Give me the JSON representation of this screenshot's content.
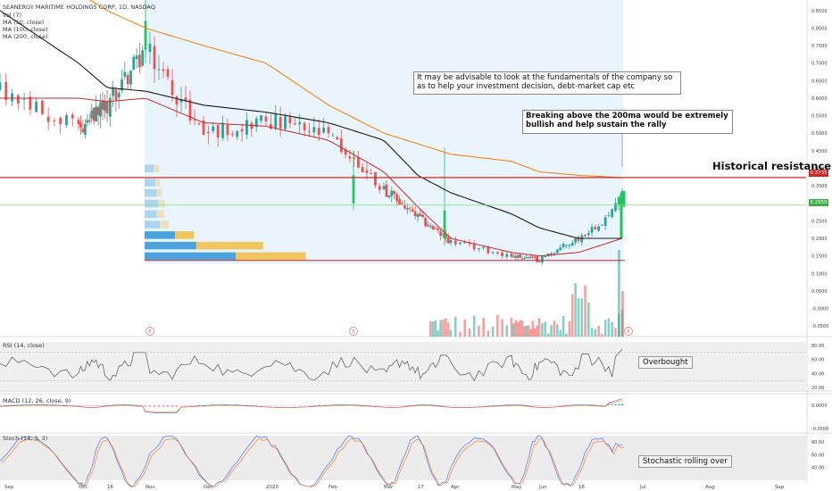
{
  "colors": {
    "up": "#26a69a",
    "down": "#ef5350",
    "up_bright": "#22c55e",
    "ma50": "#c62828",
    "ma100": "#1a1a1a",
    "ma200": "#f57c00",
    "resistance": "#c62828",
    "green_level": "#7be07b",
    "shade": "#eaf4fc",
    "vp_blue": "#3a9ad9",
    "vp_yellow": "#f2c14e"
  },
  "header": {
    "title": "SEANERGY MARITIME HOLDINGS CORP, 1D, NASDAQ",
    "indicators": [
      "Vol (7)",
      "MA (50, close)",
      "MA (100, close)",
      "MA (200, close)"
    ]
  },
  "annotations": {
    "fundamentals": "It may be advisable to look at the fundamentals  of the company so as to help your investment decision, debt-market cap etc",
    "breakout": "Breaking above the 200ma would be extremely bullish and help sustain the rally",
    "historical_resistance": "Historical resistance"
  },
  "panes": {
    "rsi": {
      "label": "RSI (14, close)",
      "note": "Overbought",
      "ticks": [
        "80.00",
        "60.00",
        "40.00",
        "20.00"
      ]
    },
    "macd": {
      "label": "MACD (12, 26, close, 9)",
      "ticks": [
        "0.0000",
        "-0.0500"
      ]
    },
    "stoch": {
      "label": "Stoch (14, 3, 3)",
      "note": "Stochastic rolling over",
      "ticks": [
        "80.00",
        "60.00",
        "40.00"
      ]
    }
  },
  "price_tags": {
    "resistance": "0.3735",
    "last": "0.2950"
  },
  "event_marker": "E",
  "chart_data": {
    "type": "candlestick",
    "ylim": [
      -0.08,
      0.88
    ],
    "yticks": [
      "0.8500",
      "0.8000",
      "0.7500",
      "0.7000",
      "0.6500",
      "0.6000",
      "0.5500",
      "0.5000",
      "0.4500",
      "0.4000",
      "0.3500",
      "0.3000",
      "0.2500",
      "0.2000",
      "0.1500",
      "0.1000",
      "0.0500",
      "-0.0000",
      "-0.0500"
    ],
    "yticks_values": [
      0.85,
      0.8,
      0.75,
      0.7,
      0.65,
      0.6,
      0.55,
      0.5,
      0.45,
      0.4,
      0.35,
      0.3,
      0.25,
      0.2,
      0.15,
      0.1,
      0.05,
      0,
      -0.05
    ],
    "x_labels": [
      "Sep",
      "Oct",
      "16",
      "Nov",
      "Dec",
      "2020",
      "Feb",
      "Mar",
      "17",
      "Apr",
      "May",
      "Jun",
      "16",
      "Jul",
      "Aug",
      "Sep"
    ],
    "levels": {
      "historical_resistance": 0.3735,
      "support": 0.137,
      "last_price": 0.295
    },
    "price_path": {
      "months": [
        "Sep",
        "Oct",
        "16",
        "Nov",
        "Dec",
        "2020",
        "Feb",
        "Mar",
        "17",
        "Apr",
        "May",
        "Jun",
        "16",
        "Jul"
      ],
      "approx_close": [
        0.62,
        0.51,
        0.58,
        0.74,
        0.5,
        0.54,
        0.49,
        0.34,
        0.26,
        0.19,
        0.15,
        0.14,
        0.2,
        0.295
      ]
    },
    "moving_averages": {
      "ma50": [
        0.6,
        0.6,
        0.59,
        0.6,
        0.53,
        0.52,
        0.48,
        0.39,
        0.29,
        0.2,
        0.16,
        0.15,
        0.16,
        0.2
      ],
      "ma100": [
        0.85,
        0.7,
        0.63,
        0.62,
        0.58,
        0.56,
        0.53,
        0.48,
        0.38,
        0.33,
        0.27,
        0.23,
        0.2,
        0.2
      ],
      "ma200": [
        0.95,
        0.9,
        0.85,
        0.8,
        0.75,
        0.7,
        0.58,
        0.5,
        0.47,
        0.44,
        0.42,
        0.39,
        0.38,
        0.3735
      ]
    },
    "volume_profile": {
      "price_bins": [
        0.4,
        0.36,
        0.33,
        0.3,
        0.27,
        0.24,
        0.21,
        0.18,
        0.15
      ],
      "up_share": [
        0.06,
        0.07,
        0.08,
        0.09,
        0.08,
        0.1,
        0.2,
        0.34,
        0.6
      ],
      "down_share": [
        0.07,
        0.06,
        0.07,
        0.09,
        0.1,
        0.12,
        0.18,
        0.63,
        0.66
      ]
    },
    "rsi": {
      "ylim": [
        15,
        85
      ],
      "last": 79
    },
    "macd": {
      "ylim": [
        -0.06,
        0.025
      ]
    },
    "stoch": {
      "ylim": [
        20,
        90
      ]
    }
  }
}
